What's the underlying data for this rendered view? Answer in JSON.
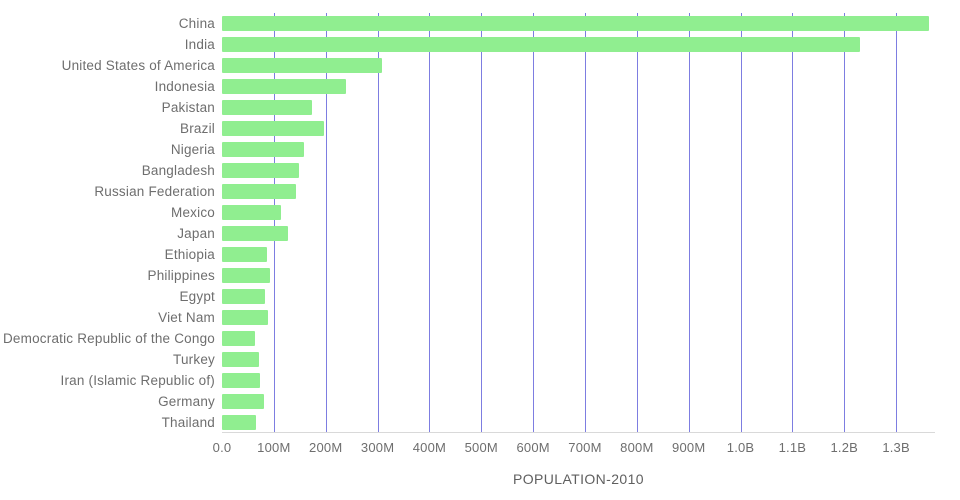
{
  "chart_data": {
    "type": "bar",
    "orientation": "horizontal",
    "title": "",
    "xlabel": "POPULATION-2010",
    "ylabel": "",
    "categories": [
      "China",
      "India",
      "United States of America",
      "Indonesia",
      "Pakistan",
      "Brazil",
      "Nigeria",
      "Bangladesh",
      "Russian Federation",
      "Mexico",
      "Japan",
      "Ethiopia",
      "Philippines",
      "Egypt",
      "Viet Nam",
      "Democratic Republic of the Congo",
      "Turkey",
      "Iran (Islamic Republic of)",
      "Germany",
      "Thailand"
    ],
    "values_millions": [
      1364,
      1231,
      309,
      240,
      174,
      196,
      158,
      148,
      143,
      114,
      128,
      87,
      93,
      82,
      88,
      64,
      72,
      74,
      81,
      66
    ],
    "xlim_millions": [
      0,
      1375
    ],
    "x_ticks": [
      {
        "value_millions": 0,
        "label": "0.0"
      },
      {
        "value_millions": 100,
        "label": "100M"
      },
      {
        "value_millions": 200,
        "label": "200M"
      },
      {
        "value_millions": 300,
        "label": "300M"
      },
      {
        "value_millions": 400,
        "label": "400M"
      },
      {
        "value_millions": 500,
        "label": "500M"
      },
      {
        "value_millions": 600,
        "label": "600M"
      },
      {
        "value_millions": 700,
        "label": "700M"
      },
      {
        "value_millions": 800,
        "label": "800M"
      },
      {
        "value_millions": 900,
        "label": "900M"
      },
      {
        "value_millions": 1000,
        "label": "1.0B"
      },
      {
        "value_millions": 1100,
        "label": "1.1B"
      },
      {
        "value_millions": 1200,
        "label": "1.2B"
      },
      {
        "value_millions": 1300,
        "label": "1.3B"
      }
    ],
    "grid": "vertical",
    "legend": "none",
    "colors": {
      "bar": "#90ee90",
      "gridline": "#7d7de1",
      "label_text": "#6e6e6e",
      "axis_line": "#d9d9d9"
    }
  }
}
